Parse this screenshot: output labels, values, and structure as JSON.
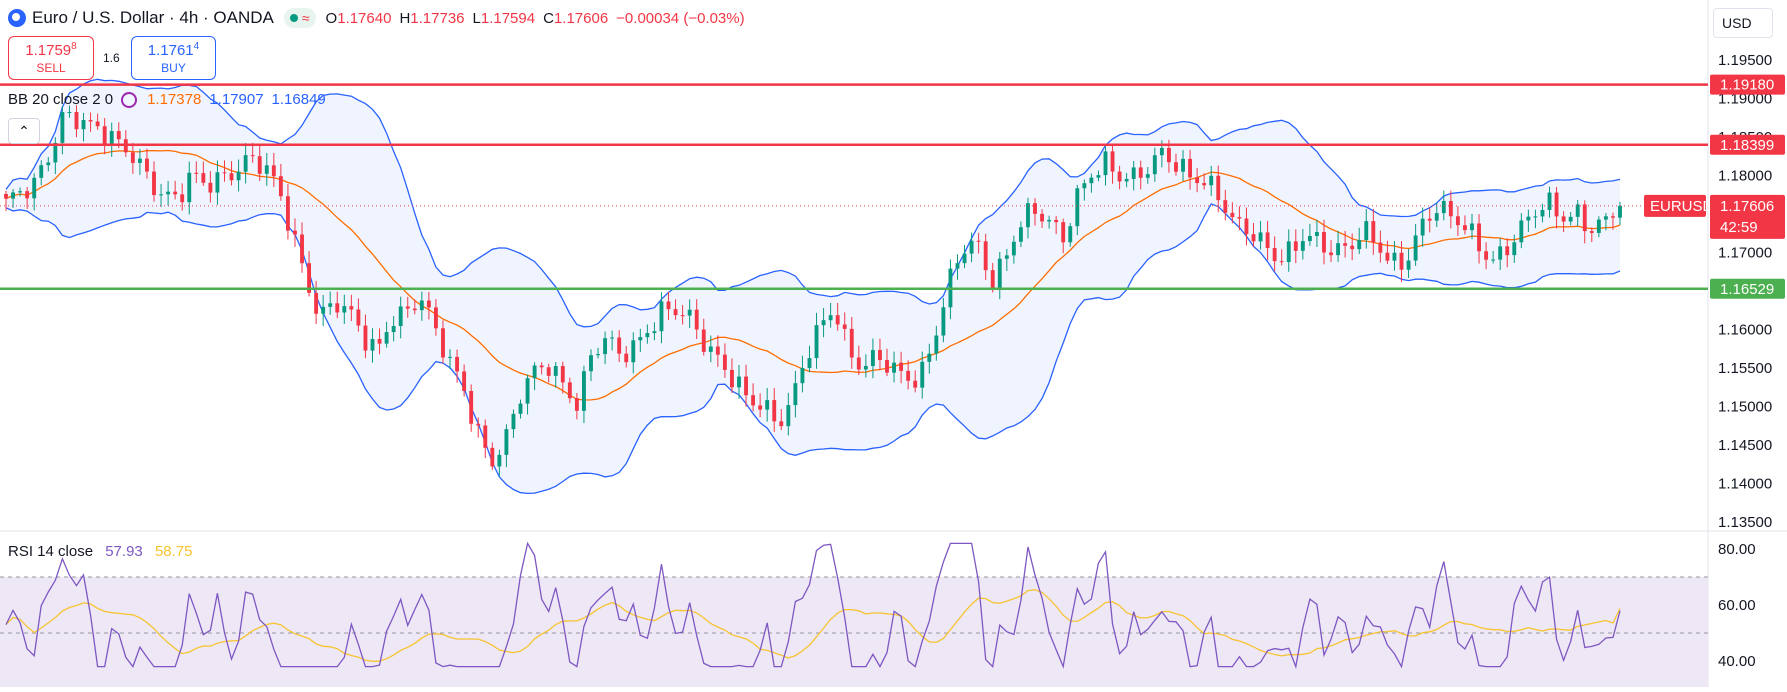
{
  "header": {
    "symbol_title": "Euro / U.S. Dollar · 4h · OANDA",
    "status_icon": "market-open-dot",
    "open_label": "O",
    "open": "1.17640",
    "high_label": "H",
    "high": "1.17736",
    "low_label": "L",
    "low": "1.17594",
    "close_label": "C",
    "close": "1.17606",
    "change": "−0.00034 (−0.03%)"
  },
  "trade": {
    "sell_price": "1.1759",
    "sell_price_sup": "8",
    "sell_label": "SELL",
    "spread": "1.6",
    "buy_price": "1.1761",
    "buy_price_sup": "4",
    "buy_label": "BUY"
  },
  "bb_legend": {
    "title": "BB 20 close 2 0",
    "basis": "1.17378",
    "upper": "1.17907",
    "lower": "1.16849"
  },
  "rsi_legend": {
    "title": "RSI 14 close",
    "rsi": "57.93",
    "ma": "58.75"
  },
  "currency_selector": "USD",
  "price_axis": {
    "labels": [
      "1.19500",
      "1.19000",
      "1.18500",
      "1.18000",
      "1.17500",
      "1.17000",
      "1.16500",
      "1.16000",
      "1.15500",
      "1.15000",
      "1.14500",
      "1.14000",
      "1.13500"
    ]
  },
  "rsi_axis": {
    "labels": [
      "80.00",
      "60.00",
      "40.00"
    ]
  },
  "horizontal_levels": [
    {
      "price": 1.1918,
      "label": "1.19180",
      "color": "#f23645"
    },
    {
      "price": 1.18399,
      "label": "1.18399",
      "color": "#f23645"
    },
    {
      "price": 1.16529,
      "label": "1.16529",
      "color": "#4caf50"
    }
  ],
  "last_price": {
    "symbol_tag": "EURUSD",
    "price": "1.17606",
    "countdown": "42:59",
    "value": 1.17606
  },
  "colors": {
    "up": "#089981",
    "down": "#f23645",
    "bb_band": "#2962ff",
    "bb_basis": "#ff6d00",
    "rsi_line": "#7e57c2",
    "rsi_ma": "#f7c430"
  },
  "chart_data": [
    {
      "type": "candlestick",
      "title": "Euro / U.S. Dollar · 4h · OANDA",
      "ylim": [
        1.132,
        1.197
      ],
      "close_path": [
        1.1765,
        1.1772,
        1.1783,
        1.1826,
        1.1884,
        1.188,
        1.1862,
        1.1848,
        1.1834,
        1.1826,
        1.1802,
        1.1778,
        1.1768,
        1.1794,
        1.1784,
        1.1798,
        1.1812,
        1.1826,
        1.1812,
        1.1778,
        1.1724,
        1.1668,
        1.1622,
        1.164,
        1.162,
        1.1584,
        1.1568,
        1.162,
        1.1628,
        1.1646,
        1.1598,
        1.1553,
        1.1524,
        1.1471,
        1.1434,
        1.1458,
        1.151,
        1.154,
        1.1554,
        1.1534,
        1.1509,
        1.1568,
        1.1583,
        1.1561,
        1.1578,
        1.1607,
        1.1631,
        1.1625,
        1.1605,
        1.1573,
        1.156,
        1.1541,
        1.1514,
        1.1499,
        1.1469,
        1.1501,
        1.157,
        1.1611,
        1.1634,
        1.1565,
        1.1543,
        1.1563,
        1.1555,
        1.1545,
        1.1538,
        1.1584,
        1.1652,
        1.1706,
        1.1717,
        1.1668,
        1.1694,
        1.1734,
        1.1748,
        1.1741,
        1.1723,
        1.1779,
        1.1803,
        1.181,
        1.1792,
        1.1797,
        1.1818,
        1.1837,
        1.1812,
        1.1791,
        1.1786,
        1.1773,
        1.1745,
        1.1735,
        1.1709,
        1.1684,
        1.1695,
        1.1729,
        1.1718,
        1.1707,
        1.1702,
        1.1722,
        1.1708,
        1.1688,
        1.1695,
        1.1734,
        1.1755,
        1.1743,
        1.1734,
        1.1718,
        1.1694,
        1.1706,
        1.1724,
        1.1747,
        1.1762,
        1.1751,
        1.1756,
        1.1731,
        1.1735,
        1.17606
      ]
    },
    {
      "type": "line",
      "title": "RSI 14 close",
      "ylim": [
        37,
        83
      ],
      "bands": [
        70,
        50
      ],
      "last_values": {
        "rsi": 57.93,
        "ma": 58.75
      }
    }
  ]
}
